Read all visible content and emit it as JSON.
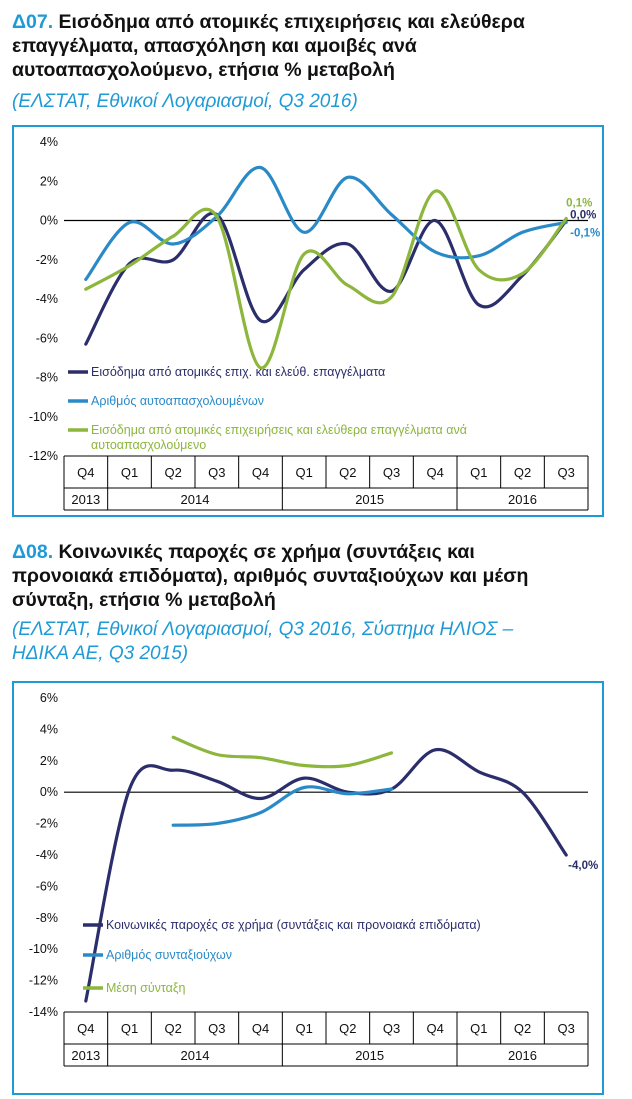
{
  "panels": [
    {
      "code": "Δ07.",
      "title_lines": [
        "Εισόδημα από ατομικές επιχειρήσεις και ελεύθερα",
        "επαγγέλματα, απασχόληση και αμοιβές ανά",
        "αυτοαπασχολούμενο, ετήσια % μεταβολή"
      ],
      "subtitle_lines": [
        "(ΕΛΣΤΑΤ, Εθνικοί Λογαριασμοί, Q3 2016)"
      ]
    },
    {
      "code": "Δ08.",
      "title_lines": [
        "Κοινωνικές παροχές σε χρήμα (συντάξεις και",
        "προνοιακά επιδόματα), αριθμός συνταξιούχων και μέση",
        "σύνταξη, ετήσια % μεταβολή"
      ],
      "subtitle_lines": [
        "(ΕΛΣΤΑΤ, Εθνικοί Λογαριασμοί, Q3 2016, Σύστημα ΗΛΙΟΣ –",
        "ΗΔΙΚΑ ΑΕ, Q3 2015)"
      ]
    }
  ],
  "colors": {
    "accent": "#1e9ad6",
    "navy": "#2b2e6b",
    "blue": "#2a8ac7",
    "green": "#8cb63c",
    "axis": "#000000",
    "box_border": "#1e9ad6"
  },
  "chart_data": [
    {
      "type": "line",
      "quarters": [
        "Q4",
        "Q1",
        "Q2",
        "Q3",
        "Q4",
        "Q1",
        "Q2",
        "Q3",
        "Q4",
        "Q1",
        "Q2",
        "Q3"
      ],
      "years": [
        {
          "label": "2013",
          "span": 1
        },
        {
          "label": "2014",
          "span": 4
        },
        {
          "label": "2015",
          "span": 4
        },
        {
          "label": "2016",
          "span": 3
        }
      ],
      "ylim": [
        -12,
        4
      ],
      "yticks": [
        -12,
        -10,
        -8,
        -6,
        -4,
        -2,
        0,
        2,
        4
      ],
      "ytick_labels": [
        "-12%",
        "-10%",
        "-8%",
        "-6%",
        "-4%",
        "-2%",
        "0%",
        "2%",
        "4%"
      ],
      "series": [
        {
          "name": "Εισόδημα από ατομικές επιχ. και ελεύθ. επαγγέλματα",
          "color": "navy",
          "values": [
            -6.3,
            -2.2,
            -2.0,
            0.3,
            -5.1,
            -2.5,
            -1.2,
            -3.6,
            0.0,
            -4.3,
            -2.8,
            0.0
          ],
          "end_label": "0,0%"
        },
        {
          "name": "Αριθμός αυτοαπασχολουμένων",
          "color": "blue",
          "values": [
            -3.0,
            -0.1,
            -1.2,
            0.2,
            2.7,
            -0.6,
            2.2,
            0.3,
            -1.6,
            -1.8,
            -0.6,
            -0.1
          ],
          "end_label": "-0,1%"
        },
        {
          "name": "Εισόδημα από ατομικές επιχειρήσεις και ελεύθερα επαγγέλματα ανά αυτοαπασχολούμενο",
          "legend_lines": [
            "Εισόδημα από ατομικές επιχειρήσεις και ελεύθερα επαγγέλματα ανά",
            "αυτοαπασχολούμενο"
          ],
          "color": "green",
          "values": [
            -3.5,
            -2.3,
            -0.8,
            0.2,
            -7.5,
            -1.7,
            -3.3,
            -3.9,
            1.5,
            -2.5,
            -2.7,
            0.1
          ],
          "end_label": "0,1%"
        }
      ],
      "legend_placement": "lower-left",
      "grid": false
    },
    {
      "type": "line",
      "quarters": [
        "Q4",
        "Q1",
        "Q2",
        "Q3",
        "Q4",
        "Q1",
        "Q2",
        "Q3",
        "Q4",
        "Q1",
        "Q2",
        "Q3"
      ],
      "years": [
        {
          "label": "2013",
          "span": 1
        },
        {
          "label": "2014",
          "span": 4
        },
        {
          "label": "2015",
          "span": 4
        },
        {
          "label": "2016",
          "span": 3
        }
      ],
      "ylim": [
        -14,
        6
      ],
      "yticks": [
        -14,
        -12,
        -10,
        -8,
        -6,
        -4,
        -2,
        0,
        2,
        4,
        6
      ],
      "ytick_labels": [
        "-14%",
        "-12%",
        "-10%",
        "-8%",
        "-6%",
        "-4%",
        "-2%",
        "0%",
        "2%",
        "4%",
        "6%"
      ],
      "series": [
        {
          "name": "Κοινωνικές παροχές σε χρήμα (συντάξεις και προνοιακά επιδόματα)",
          "color": "navy",
          "values": [
            -13.3,
            0.2,
            1.4,
            0.7,
            -0.4,
            0.9,
            0.0,
            0.2,
            2.7,
            1.3,
            0.0,
            -4.0
          ],
          "end_label": "-4,0%"
        },
        {
          "name": "Αριθμός συνταξιούχων",
          "color": "blue",
          "values": [
            null,
            null,
            -2.1,
            -2.0,
            -1.3,
            0.3,
            -0.1,
            0.2,
            null,
            null,
            null,
            null
          ]
        },
        {
          "name": "Μέση σύνταξη",
          "color": "green",
          "values": [
            null,
            null,
            3.5,
            2.4,
            2.2,
            1.7,
            1.7,
            2.5,
            null,
            null,
            null,
            null
          ]
        }
      ],
      "legend_placement": "lower-left",
      "grid": false
    }
  ]
}
